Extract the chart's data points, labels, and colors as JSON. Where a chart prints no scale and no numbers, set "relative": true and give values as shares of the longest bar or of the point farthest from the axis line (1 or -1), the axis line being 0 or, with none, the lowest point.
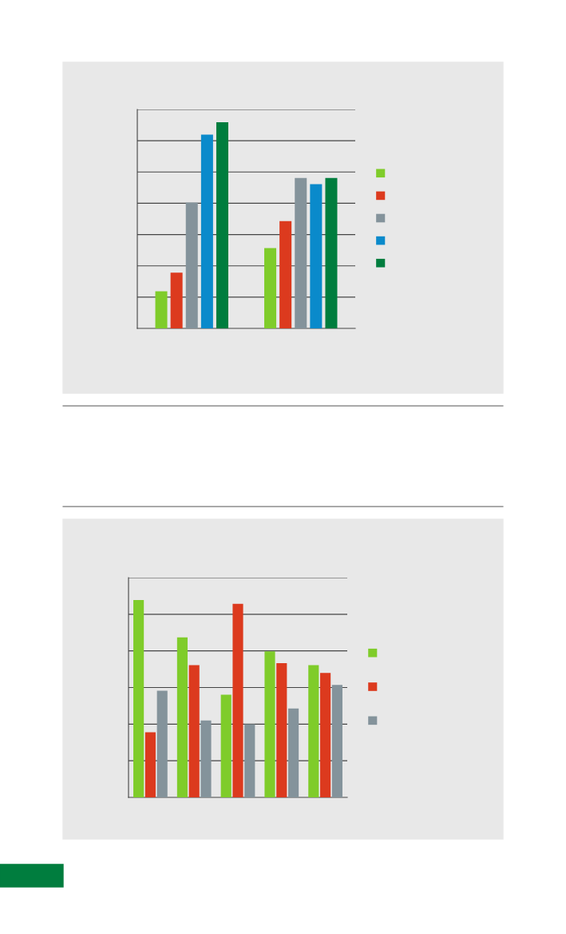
{
  "chart_data": [
    {
      "type": "bar",
      "relative": true,
      "categories": [
        null,
        null
      ],
      "grid": "y",
      "series": [
        {
          "color": "#7fcc2a",
          "values": [
            0.18,
            0.39
          ]
        },
        {
          "color": "#dc3a1e",
          "values": [
            0.27,
            0.52
          ]
        },
        {
          "color": "#84939b",
          "values": [
            0.61,
            0.73
          ]
        },
        {
          "color": "#0a8acb",
          "values": [
            0.94,
            0.7
          ]
        },
        {
          "color": "#007d3e",
          "values": [
            1.0,
            0.73
          ]
        }
      ]
    },
    {
      "type": "bar",
      "relative": true,
      "categories": [
        null,
        null,
        null,
        null,
        null
      ],
      "grid": "y",
      "series": [
        {
          "color": "#7fcc2a",
          "values": [
            1.0,
            0.81,
            0.52,
            0.74,
            0.67
          ]
        },
        {
          "color": "#dc3a1e",
          "values": [
            0.33,
            0.67,
            0.98,
            0.68,
            0.63
          ]
        },
        {
          "color": "#84939b",
          "values": [
            0.54,
            0.39,
            0.37,
            0.45,
            0.57
          ]
        }
      ]
    }
  ]
}
